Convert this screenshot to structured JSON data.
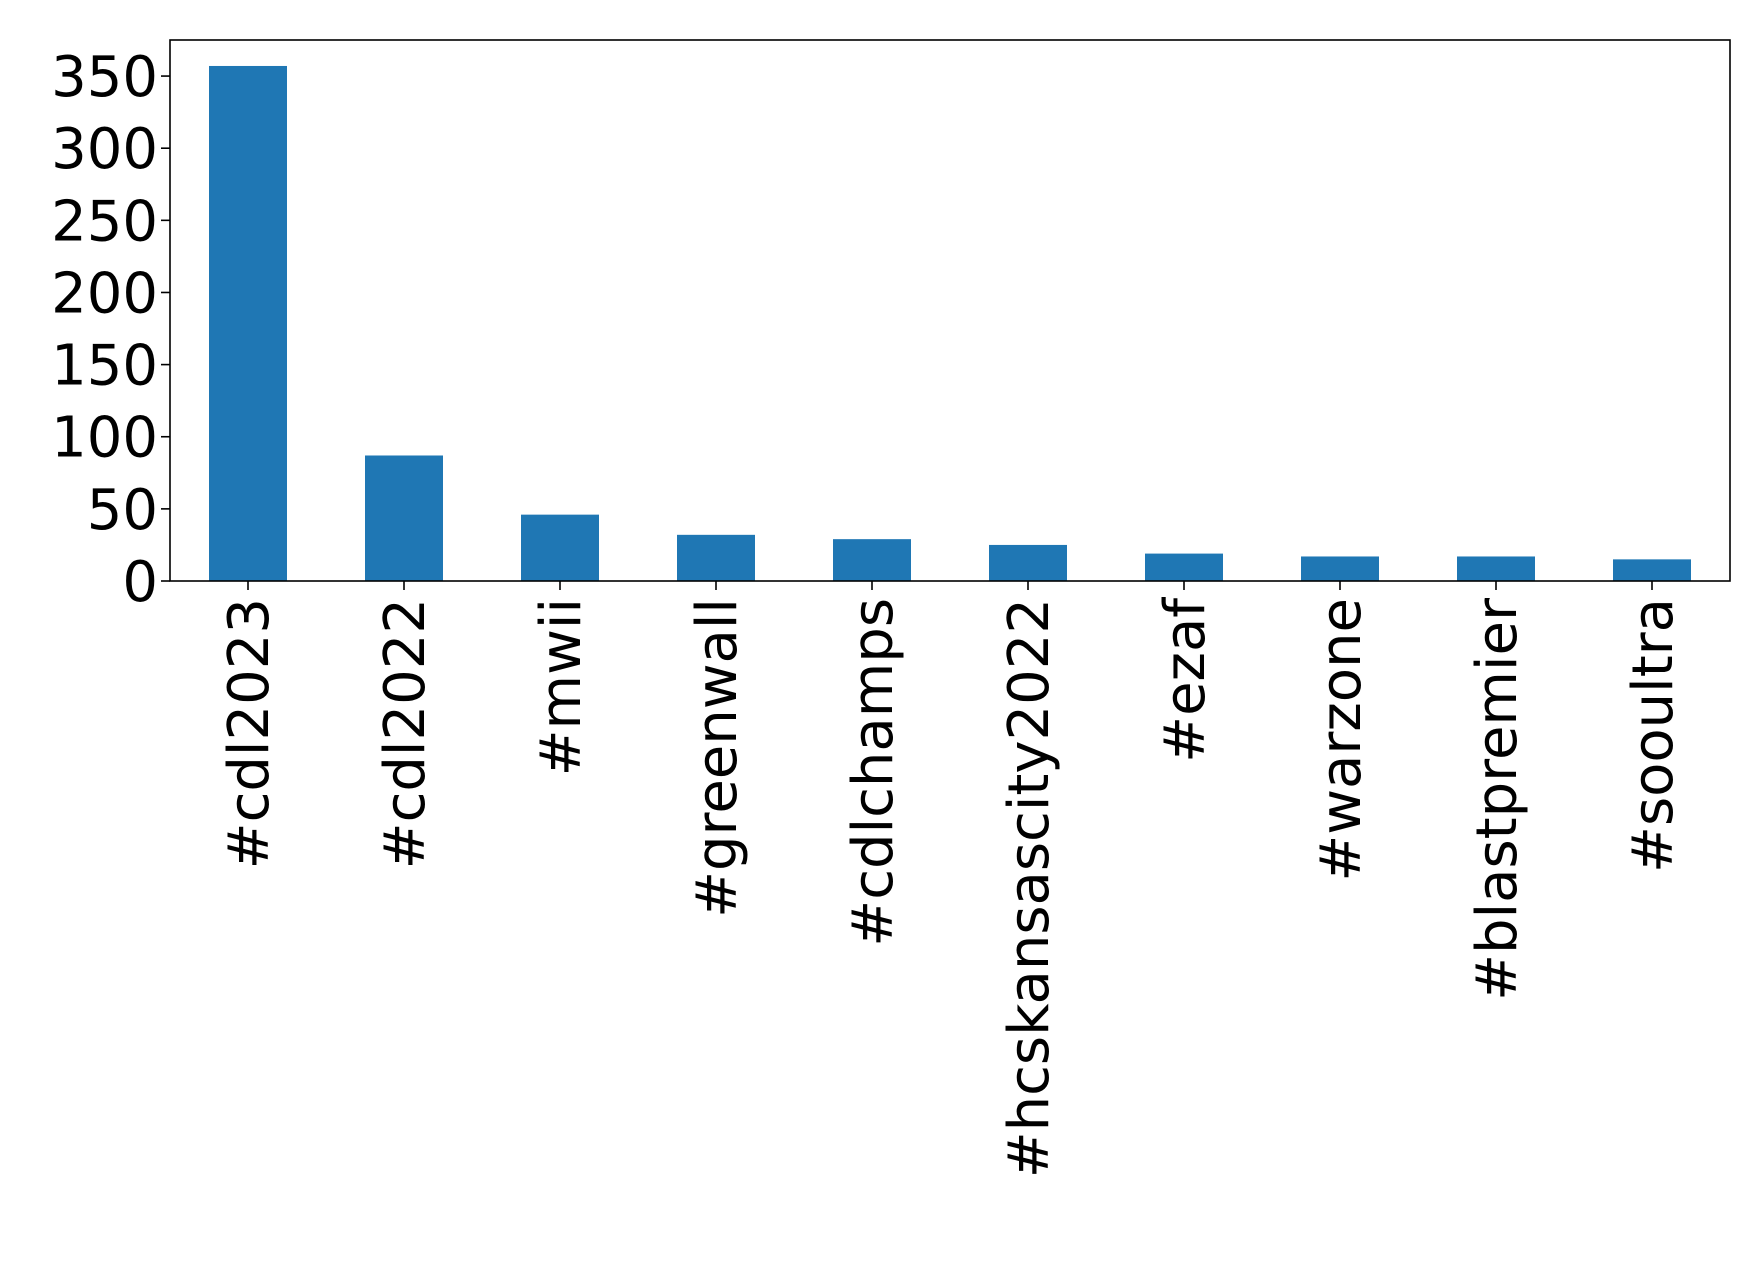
{
  "chart_data": {
    "type": "bar",
    "title": "",
    "xlabel": "",
    "ylabel": "",
    "categories": [
      "#cdl2023",
      "#cdl2022",
      "#mwii",
      "#greenwall",
      "#cdlchamps",
      "#hcskansascity2022",
      "#ezaf",
      "#warzone",
      "#blastpremier",
      "#sooultra"
    ],
    "values": [
      357,
      87,
      46,
      32,
      29,
      25,
      19,
      17,
      17,
      15
    ],
    "ylim": [
      0,
      375
    ],
    "yticks": [
      0,
      50,
      100,
      150,
      200,
      250,
      300,
      350
    ],
    "bar_color": "#1f77b4",
    "grid": false,
    "legend": "none"
  }
}
